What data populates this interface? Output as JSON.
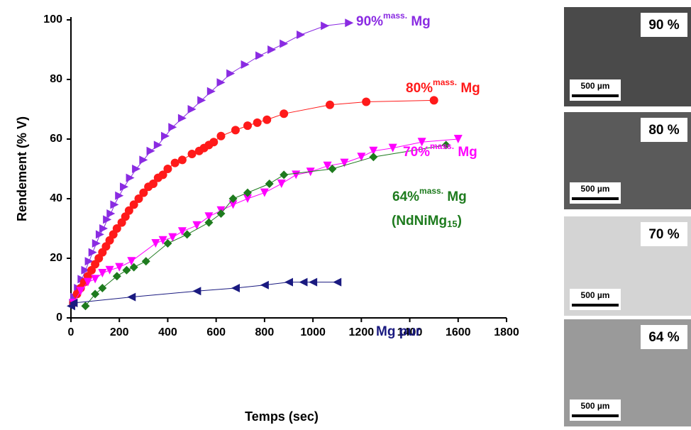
{
  "chart_data": {
    "type": "line",
    "x_label": "Temps (sec)",
    "y_label": "Rendement (% V)",
    "xlim": [
      0,
      1800
    ],
    "xticks": [
      0,
      200,
      400,
      600,
      800,
      1000,
      1200,
      1400,
      1600,
      1800
    ],
    "ylim": [
      0,
      100
    ],
    "yticks": [
      0,
      20,
      40,
      60,
      80,
      100
    ],
    "series": [
      {
        "color": "#8a2be2",
        "marker": "triangle-right",
        "x": [
          10,
          15,
          30,
          45,
          60,
          75,
          90,
          105,
          120,
          135,
          150,
          165,
          180,
          200,
          220,
          245,
          270,
          300,
          330,
          360,
          390,
          420,
          460,
          500,
          540,
          580,
          620,
          660,
          720,
          780,
          830,
          880,
          950,
          1050,
          1150
        ],
        "values": [
          5,
          7,
          10,
          13,
          16,
          19,
          22,
          25,
          28,
          30,
          33,
          35,
          38,
          41,
          44,
          47,
          50,
          53,
          56,
          58,
          61,
          64,
          67,
          70,
          73,
          76,
          79,
          82,
          85,
          88,
          90,
          92,
          95,
          98,
          99
        ]
      },
      {
        "color": "#ff1a1a",
        "marker": "circle",
        "x": [
          10,
          25,
          40,
          55,
          70,
          85,
          100,
          115,
          130,
          145,
          160,
          175,
          190,
          210,
          225,
          240,
          260,
          280,
          300,
          320,
          340,
          360,
          380,
          400,
          430,
          460,
          500,
          530,
          550,
          570,
          590,
          620,
          680,
          730,
          770,
          810,
          880,
          1070,
          1220,
          1500
        ],
        "values": [
          5,
          8,
          10,
          12,
          14,
          16,
          18,
          20,
          22,
          24,
          26,
          28,
          30,
          32,
          34,
          36,
          38,
          40,
          42,
          44,
          45,
          47,
          48,
          50,
          52,
          53,
          55,
          56,
          57,
          58,
          59,
          61,
          63,
          64.5,
          65.5,
          66.5,
          68.5,
          71.5,
          72.5,
          73
        ]
      },
      {
        "color": "#ff00ff",
        "marker": "triangle-down",
        "x": [
          10,
          40,
          70,
          100,
          130,
          160,
          200,
          250,
          350,
          380,
          420,
          460,
          520,
          570,
          620,
          670,
          730,
          800,
          870,
          930,
          990,
          1060,
          1130,
          1200,
          1250,
          1330,
          1450,
          1600
        ],
        "values": [
          5,
          9,
          12,
          13,
          15,
          16,
          17,
          19,
          25,
          26,
          27,
          29,
          31,
          34,
          36,
          38,
          40,
          42,
          45,
          48,
          49,
          51,
          52,
          54,
          56,
          57,
          59,
          60
        ]
      },
      {
        "color": "#1e7b1e",
        "marker": "diamond",
        "x": [
          60,
          100,
          130,
          190,
          230,
          260,
          310,
          400,
          480,
          570,
          620,
          670,
          730,
          820,
          880,
          1080,
          1250,
          1550
        ],
        "values": [
          4,
          8,
          10,
          14,
          16,
          17,
          19,
          25,
          28,
          32,
          35,
          40,
          42,
          45,
          48,
          50,
          54,
          58
        ]
      },
      {
        "color": "#1a1a80",
        "marker": "triangle-left",
        "x": [
          0,
          10,
          250,
          520,
          680,
          800,
          900,
          960,
          1000,
          1100
        ],
        "values": [
          4,
          5,
          7,
          9,
          10,
          11,
          12,
          12,
          12,
          12
        ]
      }
    ],
    "annotations": [
      {
        "parts": [
          "90%",
          "mass.",
          " Mg"
        ],
        "color": "#8a2be2"
      },
      {
        "parts": [
          "80%",
          "mass.",
          " Mg"
        ],
        "color": "#ff1a1a"
      },
      {
        "parts": [
          "70%",
          "mass.",
          " Mg"
        ],
        "color": "#ff00ff"
      },
      {
        "parts": [
          "64%",
          "mass.",
          " Mg"
        ],
        "color": "#1e7b1e"
      },
      {
        "parts": [
          "(NdNiMg",
          "15",
          ")"
        ],
        "color": "#1e7b1e"
      },
      {
        "parts": [
          "Mg pur"
        ],
        "color": "#1a1a80"
      }
    ]
  },
  "panels": [
    {
      "label": "90 %",
      "scale": "500 µm"
    },
    {
      "label": "80 %",
      "scale": "500 µm"
    },
    {
      "label": "70 %",
      "scale": "500 µm"
    },
    {
      "label": "64 %",
      "scale": "500 µm"
    }
  ]
}
